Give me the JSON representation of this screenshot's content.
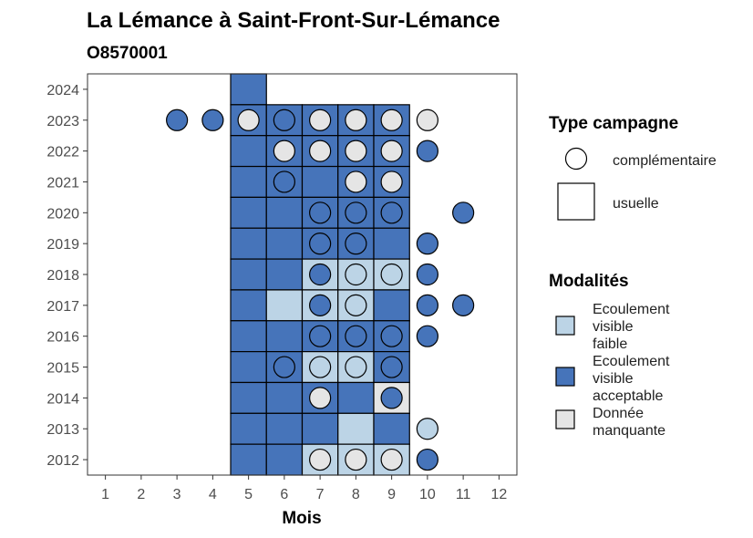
{
  "colors": {
    "faible": "#BCD4E6",
    "acceptable": "#4674BA",
    "manquante": "#E5E5E5",
    "border": "#000000",
    "axis_text": "#4D4D4D"
  },
  "chart_data": {
    "type": "heatmap",
    "title": "La Lémance à Saint-Front-Sur-Lémance",
    "subtitle": "O8570001",
    "xlabel": "Mois",
    "ylabel": "",
    "x_ticks": [
      "1",
      "2",
      "3",
      "4",
      "5",
      "6",
      "7",
      "8",
      "9",
      "10",
      "11",
      "12"
    ],
    "y_ticks": [
      "2012",
      "2013",
      "2014",
      "2015",
      "2016",
      "2017",
      "2018",
      "2019",
      "2020",
      "2021",
      "2022",
      "2023",
      "2024"
    ],
    "xlim": [
      0.5,
      12.5
    ],
    "ylim": [
      2011.5,
      2024.5
    ],
    "grid": false,
    "legend_position": "right",
    "legend_type": {
      "title": "Type campagne",
      "items": [
        {
          "key": "circle",
          "label": "complémentaire"
        },
        {
          "key": "square",
          "label": "usuelle"
        }
      ]
    },
    "legend_modalites": {
      "title": "Modalités",
      "items": [
        {
          "key": "faible",
          "lines": [
            "Ecoulement",
            "visible",
            "faible"
          ]
        },
        {
          "key": "acceptable",
          "lines": [
            "Ecoulement",
            "visible",
            "acceptable"
          ]
        },
        {
          "key": "manquante",
          "lines": [
            "Donnée",
            "manquante"
          ]
        }
      ]
    },
    "usuelle": [
      {
        "year": 2024,
        "month": 5,
        "m": "acceptable"
      },
      {
        "year": 2023,
        "month": 5,
        "m": "acceptable"
      },
      {
        "year": 2023,
        "month": 6,
        "m": "acceptable"
      },
      {
        "year": 2023,
        "month": 7,
        "m": "acceptable"
      },
      {
        "year": 2023,
        "month": 8,
        "m": "acceptable"
      },
      {
        "year": 2023,
        "month": 9,
        "m": "acceptable"
      },
      {
        "year": 2022,
        "month": 5,
        "m": "acceptable"
      },
      {
        "year": 2022,
        "month": 6,
        "m": "acceptable"
      },
      {
        "year": 2022,
        "month": 7,
        "m": "acceptable"
      },
      {
        "year": 2022,
        "month": 8,
        "m": "acceptable"
      },
      {
        "year": 2022,
        "month": 9,
        "m": "acceptable"
      },
      {
        "year": 2021,
        "month": 5,
        "m": "acceptable"
      },
      {
        "year": 2021,
        "month": 6,
        "m": "acceptable"
      },
      {
        "year": 2021,
        "month": 7,
        "m": "acceptable"
      },
      {
        "year": 2021,
        "month": 8,
        "m": "acceptable"
      },
      {
        "year": 2021,
        "month": 9,
        "m": "acceptable"
      },
      {
        "year": 2020,
        "month": 5,
        "m": "acceptable"
      },
      {
        "year": 2020,
        "month": 6,
        "m": "acceptable"
      },
      {
        "year": 2020,
        "month": 7,
        "m": "acceptable"
      },
      {
        "year": 2020,
        "month": 8,
        "m": "acceptable"
      },
      {
        "year": 2020,
        "month": 9,
        "m": "acceptable"
      },
      {
        "year": 2019,
        "month": 5,
        "m": "acceptable"
      },
      {
        "year": 2019,
        "month": 6,
        "m": "acceptable"
      },
      {
        "year": 2019,
        "month": 7,
        "m": "acceptable"
      },
      {
        "year": 2019,
        "month": 8,
        "m": "acceptable"
      },
      {
        "year": 2019,
        "month": 9,
        "m": "acceptable"
      },
      {
        "year": 2018,
        "month": 5,
        "m": "acceptable"
      },
      {
        "year": 2018,
        "month": 6,
        "m": "acceptable"
      },
      {
        "year": 2018,
        "month": 7,
        "m": "faible"
      },
      {
        "year": 2018,
        "month": 8,
        "m": "faible"
      },
      {
        "year": 2018,
        "month": 9,
        "m": "faible"
      },
      {
        "year": 2017,
        "month": 5,
        "m": "acceptable"
      },
      {
        "year": 2017,
        "month": 6,
        "m": "faible"
      },
      {
        "year": 2017,
        "month": 7,
        "m": "faible"
      },
      {
        "year": 2017,
        "month": 8,
        "m": "faible"
      },
      {
        "year": 2017,
        "month": 9,
        "m": "acceptable"
      },
      {
        "year": 2016,
        "month": 5,
        "m": "acceptable"
      },
      {
        "year": 2016,
        "month": 6,
        "m": "acceptable"
      },
      {
        "year": 2016,
        "month": 7,
        "m": "acceptable"
      },
      {
        "year": 2016,
        "month": 8,
        "m": "acceptable"
      },
      {
        "year": 2016,
        "month": 9,
        "m": "acceptable"
      },
      {
        "year": 2015,
        "month": 5,
        "m": "acceptable"
      },
      {
        "year": 2015,
        "month": 6,
        "m": "acceptable"
      },
      {
        "year": 2015,
        "month": 7,
        "m": "faible"
      },
      {
        "year": 2015,
        "month": 8,
        "m": "faible"
      },
      {
        "year": 2015,
        "month": 9,
        "m": "acceptable"
      },
      {
        "year": 2014,
        "month": 5,
        "m": "acceptable"
      },
      {
        "year": 2014,
        "month": 6,
        "m": "acceptable"
      },
      {
        "year": 2014,
        "month": 7,
        "m": "acceptable"
      },
      {
        "year": 2014,
        "month": 8,
        "m": "acceptable"
      },
      {
        "year": 2014,
        "month": 9,
        "m": "manquante"
      },
      {
        "year": 2013,
        "month": 5,
        "m": "acceptable"
      },
      {
        "year": 2013,
        "month": 6,
        "m": "acceptable"
      },
      {
        "year": 2013,
        "month": 7,
        "m": "acceptable"
      },
      {
        "year": 2013,
        "month": 8,
        "m": "faible"
      },
      {
        "year": 2013,
        "month": 9,
        "m": "acceptable"
      },
      {
        "year": 2012,
        "month": 5,
        "m": "acceptable"
      },
      {
        "year": 2012,
        "month": 6,
        "m": "acceptable"
      },
      {
        "year": 2012,
        "month": 7,
        "m": "faible"
      },
      {
        "year": 2012,
        "month": 8,
        "m": "faible"
      },
      {
        "year": 2012,
        "month": 9,
        "m": "faible"
      }
    ],
    "complementaire": [
      {
        "year": 2023,
        "month": 3,
        "m": "acceptable"
      },
      {
        "year": 2023,
        "month": 4,
        "m": "acceptable"
      },
      {
        "year": 2023,
        "month": 5,
        "m": "manquante"
      },
      {
        "year": 2023,
        "month": 6,
        "m": "acceptable"
      },
      {
        "year": 2023,
        "month": 7,
        "m": "manquante"
      },
      {
        "year": 2023,
        "month": 8,
        "m": "manquante"
      },
      {
        "year": 2023,
        "month": 9,
        "m": "manquante"
      },
      {
        "year": 2023,
        "month": 10,
        "m": "manquante"
      },
      {
        "year": 2022,
        "month": 6,
        "m": "manquante"
      },
      {
        "year": 2022,
        "month": 7,
        "m": "manquante"
      },
      {
        "year": 2022,
        "month": 8,
        "m": "manquante"
      },
      {
        "year": 2022,
        "month": 9,
        "m": "manquante"
      },
      {
        "year": 2022,
        "month": 10,
        "m": "acceptable"
      },
      {
        "year": 2021,
        "month": 6,
        "m": "acceptable"
      },
      {
        "year": 2021,
        "month": 8,
        "m": "manquante"
      },
      {
        "year": 2021,
        "month": 9,
        "m": "manquante"
      },
      {
        "year": 2020,
        "month": 7,
        "m": "acceptable"
      },
      {
        "year": 2020,
        "month": 8,
        "m": "acceptable"
      },
      {
        "year": 2020,
        "month": 9,
        "m": "acceptable"
      },
      {
        "year": 2020,
        "month": 11,
        "m": "acceptable"
      },
      {
        "year": 2019,
        "month": 7,
        "m": "acceptable"
      },
      {
        "year": 2019,
        "month": 8,
        "m": "acceptable"
      },
      {
        "year": 2019,
        "month": 10,
        "m": "acceptable"
      },
      {
        "year": 2018,
        "month": 7,
        "m": "acceptable"
      },
      {
        "year": 2018,
        "month": 8,
        "m": "faible"
      },
      {
        "year": 2018,
        "month": 9,
        "m": "faible"
      },
      {
        "year": 2018,
        "month": 10,
        "m": "acceptable"
      },
      {
        "year": 2017,
        "month": 7,
        "m": "acceptable"
      },
      {
        "year": 2017,
        "month": 8,
        "m": "faible"
      },
      {
        "year": 2017,
        "month": 10,
        "m": "acceptable"
      },
      {
        "year": 2017,
        "month": 11,
        "m": "acceptable"
      },
      {
        "year": 2016,
        "month": 7,
        "m": "acceptable"
      },
      {
        "year": 2016,
        "month": 8,
        "m": "acceptable"
      },
      {
        "year": 2016,
        "month": 9,
        "m": "acceptable"
      },
      {
        "year": 2016,
        "month": 10,
        "m": "acceptable"
      },
      {
        "year": 2015,
        "month": 6,
        "m": "acceptable"
      },
      {
        "year": 2015,
        "month": 7,
        "m": "faible"
      },
      {
        "year": 2015,
        "month": 8,
        "m": "faible"
      },
      {
        "year": 2015,
        "month": 9,
        "m": "acceptable"
      },
      {
        "year": 2014,
        "month": 7,
        "m": "manquante"
      },
      {
        "year": 2014,
        "month": 9,
        "m": "acceptable"
      },
      {
        "year": 2013,
        "month": 10,
        "m": "faible"
      },
      {
        "year": 2012,
        "month": 7,
        "m": "manquante"
      },
      {
        "year": 2012,
        "month": 8,
        "m": "manquante"
      },
      {
        "year": 2012,
        "month": 9,
        "m": "manquante"
      },
      {
        "year": 2012,
        "month": 10,
        "m": "acceptable"
      }
    ]
  }
}
